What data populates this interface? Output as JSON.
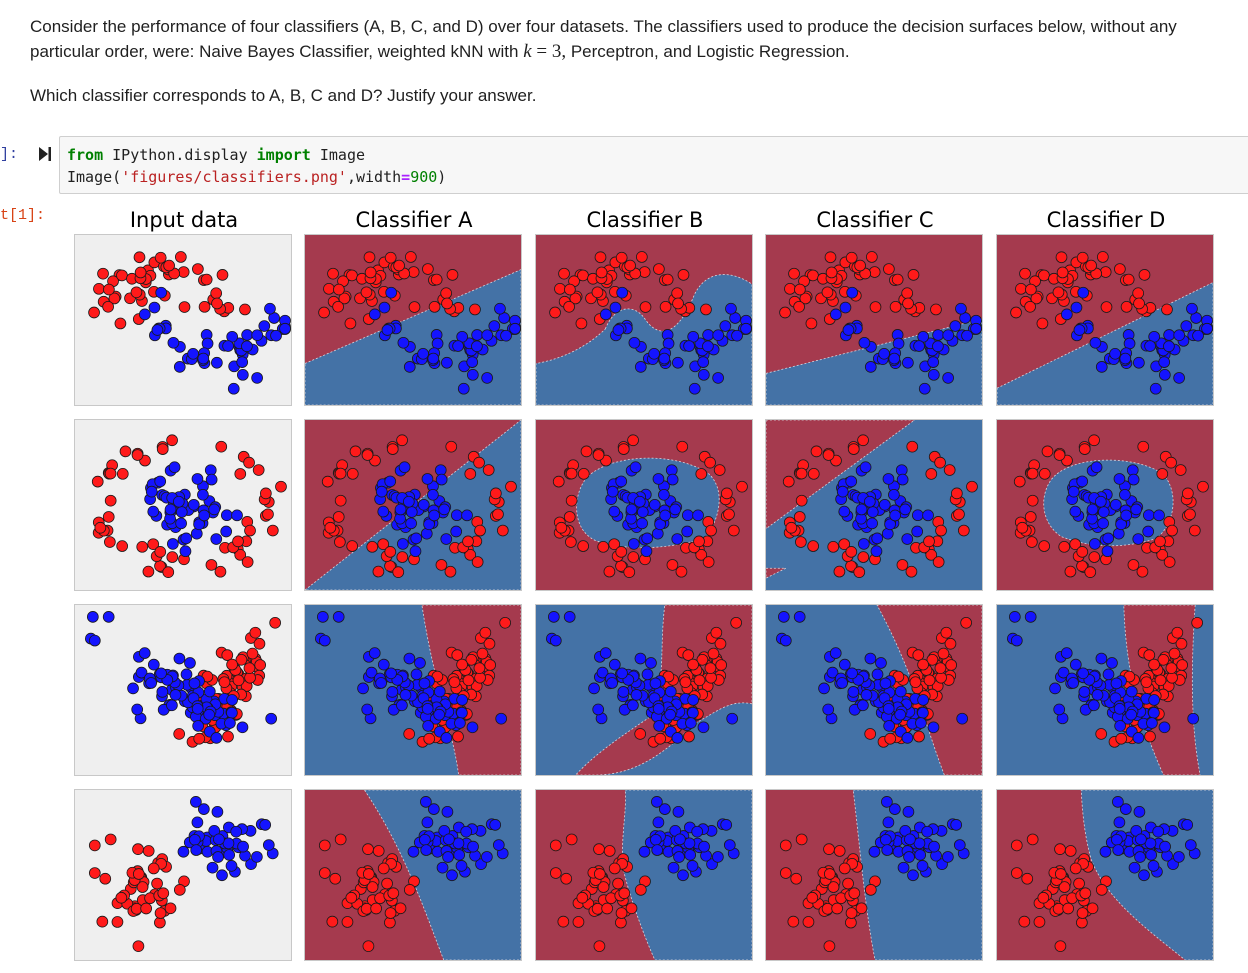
{
  "markdown": {
    "line1": "Consider the performance of four classifiers (A, B, C, and D) over four datasets. The classifiers used to produce the decision surfaces below, without any",
    "line2_pre": "particular order, were: Naive Bayes Classifier, weighted kNN with ",
    "math_k": "k",
    "math_eq": " = 3",
    "math_comma": ",",
    "line2_post": " Perceptron, and Logistic Regression.",
    "question": "Which classifier corresponds to A, B, C and D? Justify your answer."
  },
  "cell": {
    "in_prompt": "]:",
    "out_prompt": "t[1]:",
    "code": {
      "l1_kw1": "from",
      "l1_mod": " IPython.display ",
      "l1_kw2": "import",
      "l1_name": " Image",
      "l2_call": "Image(",
      "l2_str": "'figures/classifiers.png'",
      "l2_mid": ",width",
      "l2_op": "=",
      "l2_num": "900",
      "l2_end": ")"
    }
  },
  "figure": {
    "column_titles": [
      "Input data",
      "Classifier A",
      "Classifier B",
      "Classifier C",
      "Classifier D"
    ],
    "rows": [
      "row-1",
      "row-2",
      "row-3",
      "row-4"
    ]
  },
  "colors": {
    "region_red": "#A53A4E",
    "region_blue": "#4472A6",
    "point_red": "#FF1A1A",
    "point_blue": "#1414FF",
    "input_bg": "#EFEFEF",
    "in_prompt": "#303F9F",
    "out_prompt": "#D84315"
  }
}
